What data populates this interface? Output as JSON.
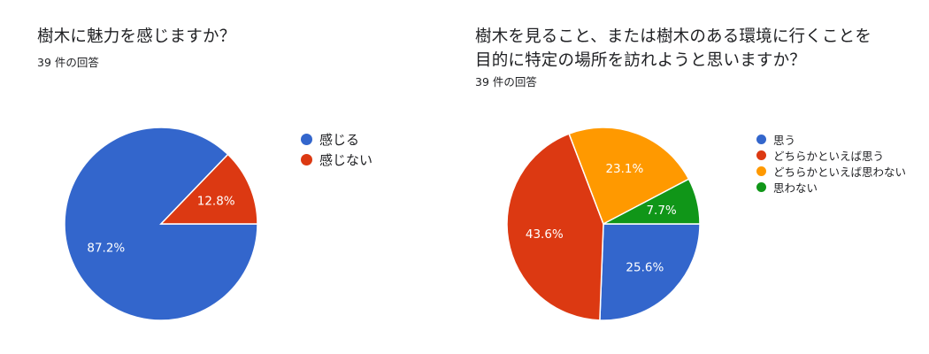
{
  "chart_data": [
    {
      "type": "pie",
      "title": "樹木に魅力を感じますか？",
      "subtitle": "39 件の回答",
      "legend_position": "right",
      "slices": [
        {
          "label": "感じる",
          "value": 87.2,
          "value_label": "87.2%",
          "color": "#3366cc"
        },
        {
          "label": "感じない",
          "value": 12.8,
          "value_label": "12.8%",
          "color": "#dc3912"
        }
      ]
    },
    {
      "type": "pie",
      "title_lines": [
        "樹木を見ること、または樹木のある環境に行くことを",
        "目的に特定の場所を訪れようと思いますか？"
      ],
      "subtitle": "39 件の回答",
      "legend_position": "right",
      "slices": [
        {
          "label": "思う",
          "value": 25.6,
          "value_label": "25.6%",
          "color": "#3366cc"
        },
        {
          "label": "どちらかといえば思う",
          "value": 43.6,
          "value_label": "43.6%",
          "color": "#dc3912"
        },
        {
          "label": "どちらかといえば思わない",
          "value": 23.1,
          "value_label": "23.1%",
          "color": "#ff9900"
        },
        {
          "label": "思わない",
          "value": 7.7,
          "value_label": "7.7%",
          "color": "#109618"
        }
      ]
    }
  ]
}
